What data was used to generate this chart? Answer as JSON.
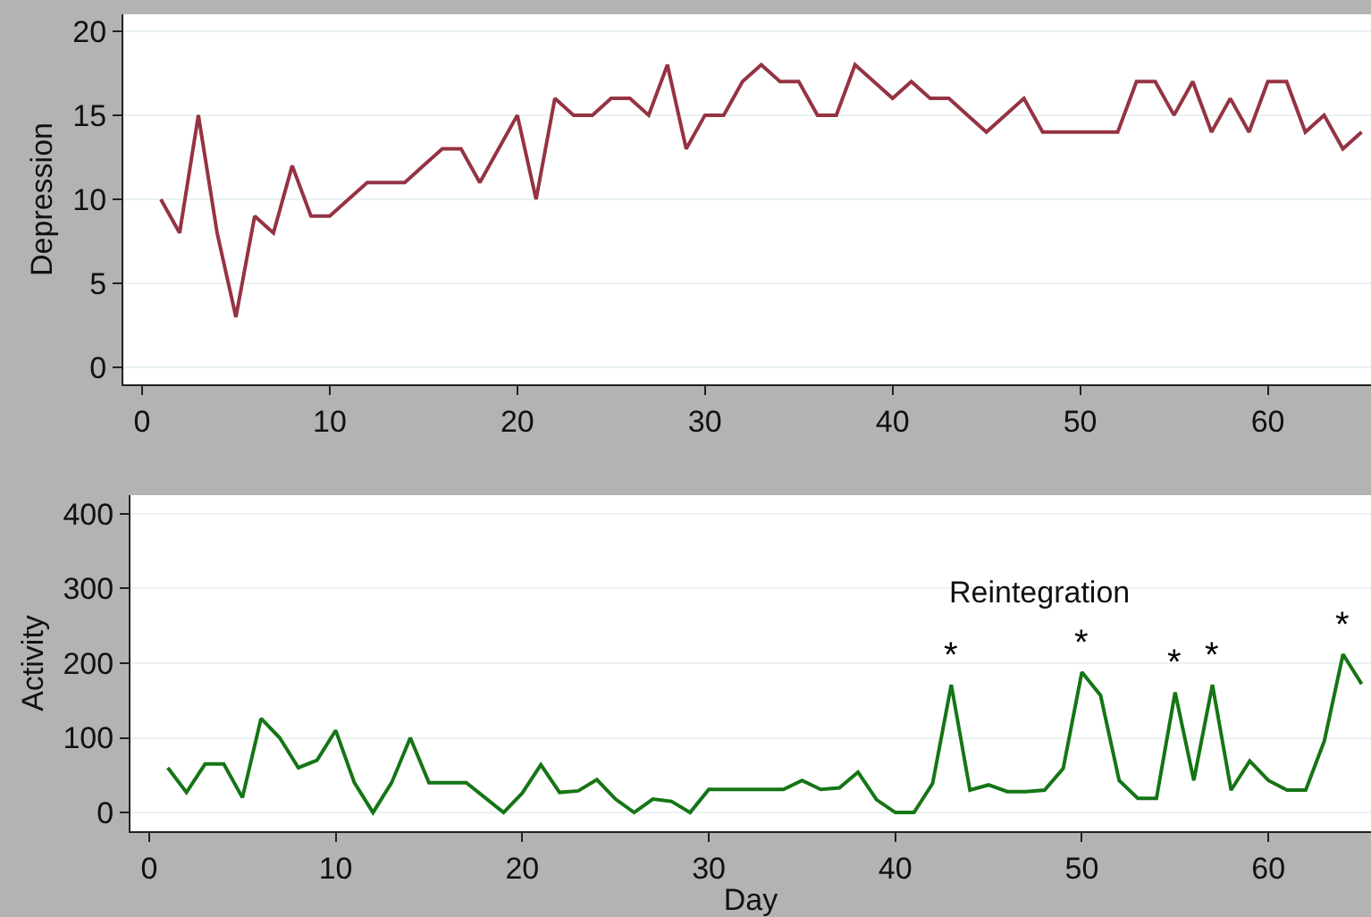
{
  "chart_data": [
    {
      "type": "line",
      "ylabel": "Depression",
      "x": [
        1,
        2,
        3,
        4,
        5,
        6,
        7,
        8,
        9,
        10,
        11,
        12,
        13,
        14,
        15,
        16,
        17,
        18,
        19,
        20,
        21,
        22,
        23,
        24,
        25,
        26,
        27,
        28,
        29,
        30,
        31,
        32,
        33,
        34,
        35,
        36,
        37,
        38,
        39,
        40,
        41,
        42,
        43,
        44,
        45,
        46,
        47,
        48,
        49,
        50,
        51,
        52,
        53,
        54,
        55,
        56,
        57,
        58,
        59,
        60,
        61,
        62,
        63,
        64,
        65
      ],
      "series": [
        {
          "color": "#953343",
          "values": [
            10,
            8,
            15,
            8,
            3,
            9,
            8,
            12,
            9,
            9,
            10,
            11,
            11,
            11,
            12,
            13,
            13,
            11,
            13,
            15,
            10,
            16,
            15,
            15,
            16,
            16,
            15,
            18,
            13,
            15,
            15,
            17,
            18,
            17,
            17,
            15,
            15,
            18,
            17,
            16,
            17,
            16,
            16,
            15,
            14,
            15,
            16,
            14,
            14,
            14,
            14,
            14,
            17,
            17,
            15,
            17,
            14,
            16,
            14,
            17,
            17,
            14,
            15,
            13,
            14
          ]
        }
      ],
      "xlim": [
        -1,
        65.5
      ],
      "xticks": [
        0,
        10,
        20,
        30,
        40,
        50,
        60
      ],
      "ylim": [
        -1,
        21
      ],
      "yticks": [
        0,
        5,
        10,
        15,
        20
      ],
      "grid": "y",
      "marker": "none",
      "line_style": "solid"
    },
    {
      "type": "line",
      "ylabel": "Activity",
      "xlabel": "Day",
      "x": [
        1,
        2,
        3,
        4,
        5,
        6,
        7,
        8,
        9,
        10,
        11,
        12,
        13,
        14,
        15,
        16,
        17,
        18,
        19,
        20,
        21,
        22,
        23,
        24,
        25,
        26,
        27,
        28,
        29,
        30,
        31,
        32,
        33,
        34,
        35,
        36,
        37,
        38,
        39,
        40,
        41,
        42,
        43,
        44,
        45,
        46,
        47,
        48,
        49,
        50,
        51,
        52,
        53,
        54,
        55,
        56,
        57,
        58,
        59,
        60,
        61,
        62,
        63,
        64,
        65
      ],
      "series": [
        {
          "color": "#157515",
          "values": [
            60,
            27,
            65,
            65,
            20,
            126,
            100,
            60,
            70,
            110,
            40,
            0,
            40,
            100,
            40,
            40,
            40,
            20,
            0,
            26,
            64,
            27,
            29,
            44,
            18,
            0,
            18,
            15,
            0,
            31,
            31,
            31,
            31,
            31,
            43,
            31,
            33,
            54,
            17,
            0,
            0,
            39,
            171,
            30,
            37,
            28,
            28,
            30,
            59,
            188,
            157,
            43,
            19,
            19,
            161,
            43,
            171,
            30,
            69,
            43,
            30,
            30,
            96,
            212,
            172
          ]
        }
      ],
      "xlim": [
        -1,
        65.5
      ],
      "xticks": [
        0,
        10,
        20,
        30,
        40,
        50,
        60
      ],
      "ylim": [
        -25,
        425
      ],
      "yticks": [
        0,
        100,
        200,
        300,
        400
      ],
      "grid": "y",
      "marker": "none",
      "line_style": "solid",
      "annotations": [
        "Reintegration",
        {
          "text": "*",
          "x": 43,
          "y": 171
        },
        {
          "text": "*",
          "x": 50,
          "y": 188
        },
        {
          "text": "*",
          "x": 55,
          "y": 161
        },
        {
          "text": "*",
          "x": 57,
          "y": 171
        },
        {
          "text": "*",
          "x": 64,
          "y": 212
        }
      ]
    }
  ]
}
